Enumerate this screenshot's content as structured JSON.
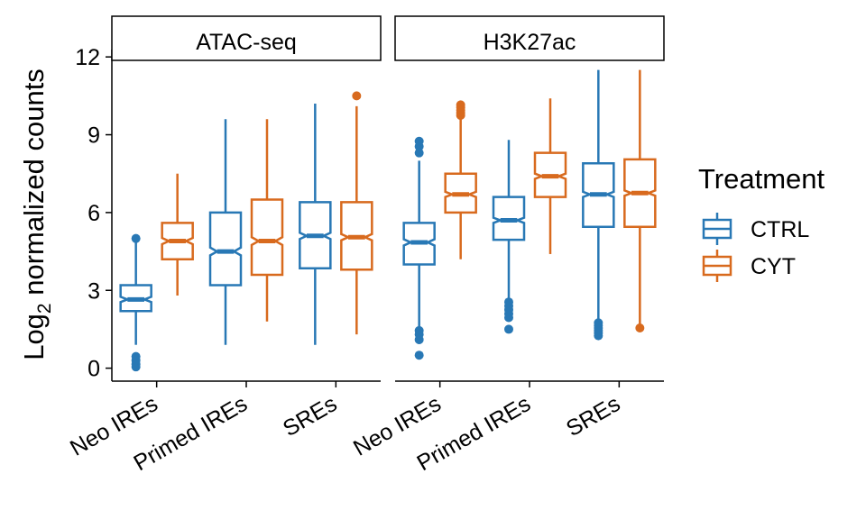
{
  "chart_data": {
    "type": "boxplot",
    "ylabel": "Log",
    "ylabel_subscript": "2",
    "ylabel_suffix": " normalized counts",
    "ylim": [
      -0.5,
      13.5
    ],
    "yticks": [
      0,
      3,
      6,
      9,
      12
    ],
    "yticklabels": [
      "0",
      "3",
      "6",
      "9",
      "12"
    ],
    "categories": [
      "Neo IREs",
      "Primed IREs",
      "SREs"
    ],
    "legend": {
      "title": "Treatment",
      "placement": "right",
      "items": [
        {
          "label": "CTRL",
          "color": "#2878B5"
        },
        {
          "label": "CYT",
          "color": "#D86A1E"
        }
      ]
    },
    "panels": [
      {
        "title": "ATAC-seq",
        "groups": [
          {
            "category": "Neo IREs",
            "boxes": [
              {
                "treatment": "CTRL",
                "min": 0.9,
                "q1": 2.2,
                "median": 2.65,
                "q3": 3.2,
                "max": 5.0,
                "notch": 0.1,
                "outliers": [
                  0.05,
                  0.15,
                  0.3,
                  0.45,
                  5.0
                ]
              },
              {
                "treatment": "CYT",
                "min": 2.8,
                "q1": 4.2,
                "median": 4.9,
                "q3": 5.6,
                "max": 7.5,
                "notch": 0.12,
                "outliers": []
              }
            ]
          },
          {
            "category": "Primed IREs",
            "boxes": [
              {
                "treatment": "CTRL",
                "min": 0.9,
                "q1": 3.2,
                "median": 4.5,
                "q3": 6.0,
                "max": 9.6,
                "notch": 0.15,
                "outliers": []
              },
              {
                "treatment": "CYT",
                "min": 1.8,
                "q1": 3.6,
                "median": 4.9,
                "q3": 6.5,
                "max": 9.6,
                "notch": 0.15,
                "outliers": []
              }
            ]
          },
          {
            "category": "SREs",
            "boxes": [
              {
                "treatment": "CTRL",
                "min": 0.9,
                "q1": 3.85,
                "median": 5.1,
                "q3": 6.4,
                "max": 10.2,
                "notch": 0.12,
                "outliers": []
              },
              {
                "treatment": "CYT",
                "min": 1.3,
                "q1": 3.8,
                "median": 5.05,
                "q3": 6.4,
                "max": 10.1,
                "notch": 0.12,
                "outliers": [
                  10.5
                ]
              }
            ]
          }
        ]
      },
      {
        "title": "H3K27ac",
        "groups": [
          {
            "category": "Neo IREs",
            "boxes": [
              {
                "treatment": "CTRL",
                "min": 1.5,
                "q1": 4.0,
                "median": 4.85,
                "q3": 5.6,
                "max": 8.0,
                "notch": 0.12,
                "outliers": [
                  0.5,
                  1.1,
                  1.3,
                  1.45,
                  8.3,
                  8.55,
                  8.75
                ]
              },
              {
                "treatment": "CYT",
                "min": 4.2,
                "q1": 6.0,
                "median": 6.7,
                "q3": 7.5,
                "max": 9.6,
                "notch": 0.1,
                "outliers": [
                  9.75,
                  9.85,
                  9.95,
                  10.05,
                  10.15
                ]
              }
            ]
          },
          {
            "category": "Primed IREs",
            "boxes": [
              {
                "treatment": "CTRL",
                "min": 2.6,
                "q1": 4.95,
                "median": 5.7,
                "q3": 6.6,
                "max": 8.8,
                "notch": 0.1,
                "outliers": [
                  1.5,
                  1.95,
                  2.1,
                  2.25,
                  2.4,
                  2.55
                ]
              },
              {
                "treatment": "CYT",
                "min": 4.4,
                "q1": 6.6,
                "median": 7.4,
                "q3": 8.3,
                "max": 10.4,
                "notch": 0.1,
                "outliers": []
              }
            ]
          },
          {
            "category": "SREs",
            "boxes": [
              {
                "treatment": "CTRL",
                "min": 1.9,
                "q1": 5.45,
                "median": 6.7,
                "q3": 7.9,
                "max": 11.5,
                "notch": 0.1,
                "outliers": [
                  1.25,
                  1.35,
                  1.45,
                  1.55,
                  1.65,
                  1.75
                ]
              },
              {
                "treatment": "CYT",
                "min": 1.6,
                "q1": 5.45,
                "median": 6.75,
                "q3": 8.05,
                "max": 11.5,
                "notch": 0.1,
                "outliers": [
                  1.55
                ]
              }
            ]
          }
        ]
      }
    ]
  }
}
